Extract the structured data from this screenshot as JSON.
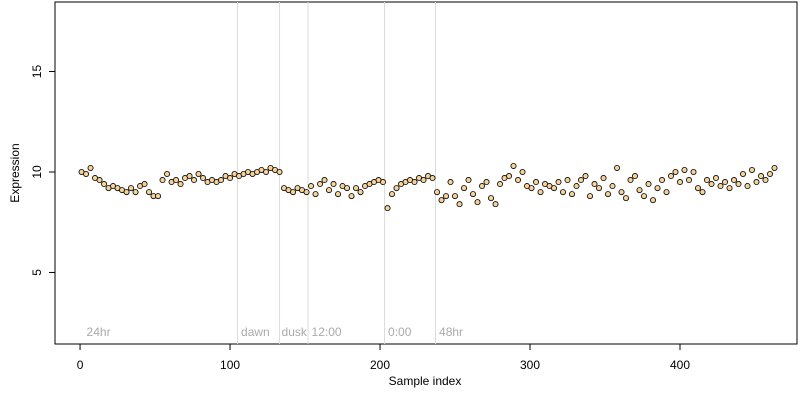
{
  "chart_data": {
    "type": "scatter",
    "xlabel": "Sample index",
    "ylabel": "Expression",
    "xlim": [
      -16.7,
      478
    ],
    "ylim": [
      1.44,
      18.46
    ],
    "xticks": [
      0,
      100,
      200,
      300,
      400
    ],
    "yticks": [
      5,
      10,
      15
    ],
    "vlines": [
      105,
      133,
      152,
      203,
      237
    ],
    "annotations": [
      {
        "x": 3,
        "label": "24hr"
      },
      {
        "x": 106,
        "label": "dawn"
      },
      {
        "x": 133,
        "label": "dusk"
      },
      {
        "x": 153,
        "label": "12:00"
      },
      {
        "x": 204,
        "label": "0:00"
      },
      {
        "x": 238,
        "label": "48hr"
      }
    ],
    "series": [
      {
        "color": "#f5d29a",
        "x": [
          1,
          4,
          7,
          10,
          13,
          16,
          19,
          22,
          25,
          28,
          31,
          34,
          37,
          40,
          43,
          46,
          49,
          52,
          55,
          58,
          61,
          64,
          67,
          70,
          73,
          76,
          79,
          82,
          85,
          88,
          91,
          94,
          97,
          100,
          103,
          106,
          109,
          112,
          115,
          118,
          121,
          124,
          127,
          130,
          133,
          136,
          139,
          142,
          145,
          148,
          151,
          154,
          157,
          160,
          163,
          166,
          169,
          172,
          175,
          178,
          181,
          184,
          187,
          190,
          193,
          196,
          199,
          202,
          205,
          208,
          211,
          214,
          217,
          220,
          223,
          226,
          229,
          232,
          235,
          238,
          241,
          244,
          247,
          250,
          253,
          256,
          259,
          262,
          265,
          268,
          271,
          274,
          277,
          280,
          283,
          286,
          289,
          292,
          295,
          298,
          301,
          304,
          307,
          310,
          313,
          316,
          319,
          322,
          325,
          328,
          331,
          334,
          337,
          340,
          343,
          346,
          349,
          352,
          355,
          358,
          361,
          364,
          367,
          370,
          373,
          376,
          379,
          382,
          385,
          388,
          391,
          394,
          397,
          400,
          403,
          406,
          409,
          412,
          415,
          418,
          421,
          424,
          427,
          430,
          433,
          436,
          439,
          442,
          445,
          448,
          451,
          454,
          457,
          460,
          463
        ],
        "values": [
          10.0,
          9.9,
          10.2,
          9.7,
          9.6,
          9.4,
          9.2,
          9.3,
          9.2,
          9.1,
          9.0,
          9.2,
          9.0,
          9.3,
          9.4,
          9.0,
          8.8,
          8.8,
          9.6,
          9.9,
          9.5,
          9.6,
          9.4,
          9.7,
          9.8,
          9.6,
          9.9,
          9.7,
          9.5,
          9.6,
          9.5,
          9.6,
          9.8,
          9.7,
          9.9,
          9.8,
          9.9,
          10.0,
          9.9,
          10.0,
          10.1,
          10.0,
          10.2,
          10.1,
          10.0,
          9.2,
          9.1,
          9.0,
          9.2,
          9.1,
          9.0,
          9.3,
          8.9,
          9.4,
          9.6,
          9.1,
          9.4,
          8.9,
          9.3,
          9.2,
          8.8,
          9.2,
          9.0,
          9.3,
          9.4,
          9.5,
          9.6,
          9.5,
          8.2,
          8.9,
          9.2,
          9.4,
          9.5,
          9.6,
          9.5,
          9.7,
          9.6,
          9.8,
          9.7,
          9.0,
          8.6,
          8.8,
          9.5,
          8.8,
          8.4,
          9.2,
          9.6,
          8.9,
          8.5,
          9.3,
          9.5,
          8.7,
          8.4,
          9.4,
          9.7,
          9.8,
          10.3,
          9.6,
          10.0,
          9.3,
          9.2,
          9.5,
          9.0,
          9.4,
          9.3,
          9.2,
          9.5,
          9.0,
          9.6,
          8.9,
          9.3,
          9.6,
          9.8,
          8.8,
          9.4,
          9.2,
          9.7,
          8.9,
          9.3,
          10.2,
          9.0,
          8.7,
          9.6,
          9.8,
          9.1,
          8.8,
          9.4,
          8.6,
          9.2,
          9.6,
          9.0,
          9.8,
          10.0,
          9.5,
          10.1,
          9.6,
          10.0,
          9.2,
          9.0,
          9.6,
          9.4,
          9.7,
          9.3,
          9.5,
          9.2,
          9.6,
          9.4,
          9.9,
          9.3,
          10.1,
          9.5,
          9.8,
          9.6,
          9.9,
          10.2
        ]
      }
    ]
  }
}
